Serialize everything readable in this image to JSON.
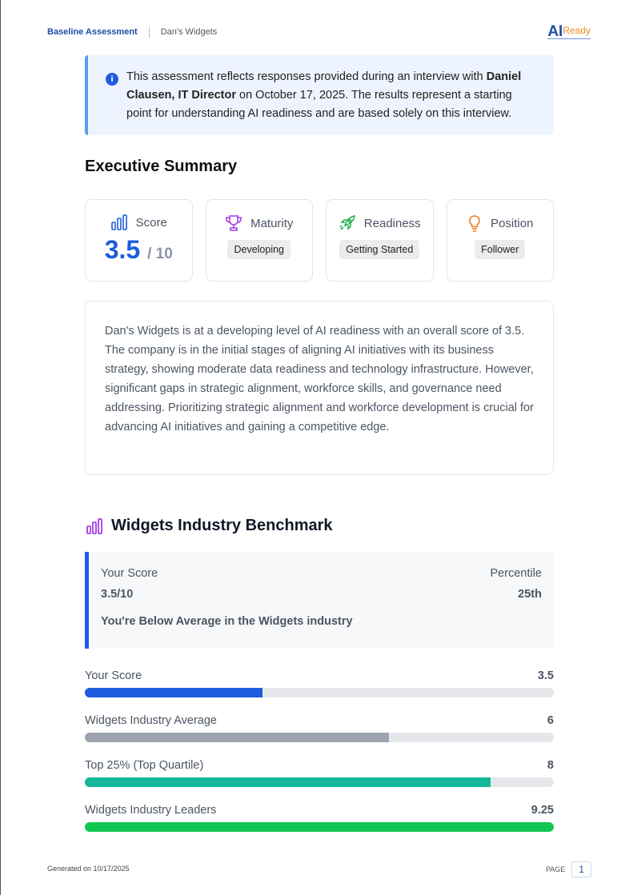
{
  "header": {
    "title": "Baseline Assessment",
    "company": "Dan's Widgets",
    "logo": "AIReady"
  },
  "info": {
    "pre": "This assessment reflects responses provided during an interview with ",
    "person": "Daniel Clausen, IT Director",
    "post": " on October 17, 2025. The results represent a starting point for understanding AI readiness and are based solely on this interview.",
    "icon": "info-icon"
  },
  "summary": {
    "title": "Executive Summary",
    "cards": [
      {
        "label": "Score",
        "value": "3.5",
        "max": "/ 10",
        "icon": "bar-chart-icon",
        "color": "#1d5be0"
      },
      {
        "label": "Maturity",
        "badge": "Developing",
        "icon": "trophy-icon",
        "color": "#a33ee6"
      },
      {
        "label": "Readiness",
        "badge": "Getting Started",
        "icon": "rocket-icon",
        "color": "#22b04a"
      },
      {
        "label": "Position",
        "badge": "Follower",
        "icon": "lightbulb-icon",
        "color": "#f07a1a"
      }
    ],
    "text": "Dan's Widgets is at a developing level of AI readiness with an overall score of 3.5. The company is in the initial stages of aligning AI initiatives with its business strategy, showing moderate data readiness and technology infrastructure. However, significant gaps in strategic alignment, workforce skills, and governance need addressing. Prioritizing strategic alignment and workforce development is crucial for advancing AI initiatives and gaining a competitive edge."
  },
  "benchmark": {
    "title": "Widgets Industry Benchmark",
    "your_label": "Your Score",
    "your_value": "3.5/10",
    "pct_label": "Percentile",
    "pct_value": "25th",
    "note": "You're Below Average in the Widgets industry",
    "bars": [
      {
        "label": "Your Score",
        "value": 3.5,
        "color": "#1d5be0"
      },
      {
        "label": "Widgets Industry Average",
        "value": 6,
        "color": "#9ca3af"
      },
      {
        "label": "Top 25% (Top Quartile)",
        "value": 8,
        "color": "#13b89a"
      },
      {
        "label": "Widgets Industry Leaders",
        "value": 9.25,
        "color": "#12c553"
      }
    ],
    "scale_max": 9.25
  },
  "footer": {
    "generated": "Generated on 10/17/2025",
    "page_label": "PAGE",
    "page": "1"
  }
}
